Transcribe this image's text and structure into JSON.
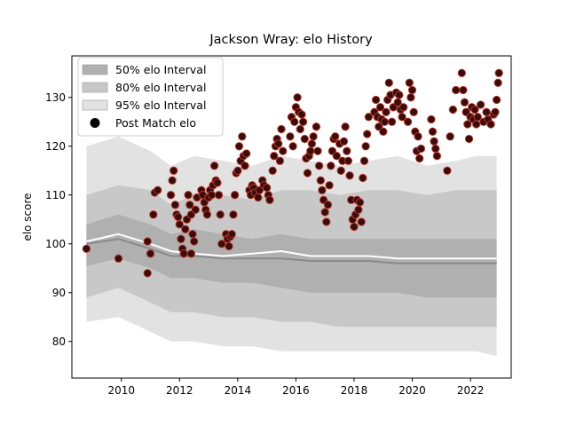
{
  "chart_data": {
    "type": "scatter",
    "title": "Jackson Wray: elo History",
    "xlabel": "",
    "ylabel": "elo score",
    "xlim": [
      2008.3,
      2023.4
    ],
    "ylim": [
      72.5,
      138.5
    ],
    "x_ticks": [
      2010,
      2012,
      2014,
      2016,
      2018,
      2020,
      2022
    ],
    "y_ticks": [
      80,
      90,
      100,
      110,
      120,
      130
    ],
    "legend_placement": "upper-left",
    "legend": [
      {
        "label": "50% elo Interval",
        "kind": "band",
        "color": "#b0b0b0"
      },
      {
        "label": "80% elo Interval",
        "kind": "band",
        "color": "#c8c8c8"
      },
      {
        "label": "95% elo Interval",
        "kind": "band",
        "color": "#e2e2e2"
      },
      {
        "label": "Post Match elo",
        "kind": "marker",
        "color": "#000000"
      }
    ],
    "colors": {
      "band50": "#b0b0b0",
      "band80": "#c8c8c8",
      "band95": "#e2e2e2",
      "median_line": "#8a8a8a",
      "mean_line": "#ffffff",
      "point_fill": "#3a0d0d",
      "point_edge": "#c0392b"
    },
    "bands": {
      "x": [
        2008.8,
        2009.9,
        2011.0,
        2011.7,
        2012.5,
        2013.5,
        2014.5,
        2015.5,
        2016.5,
        2017.5,
        2018.5,
        2019.5,
        2020.5,
        2021.5,
        2022.2,
        2022.9
      ],
      "upper95": [
        120.0,
        122.0,
        119.0,
        116.0,
        118.0,
        117.0,
        116.0,
        118.0,
        117.0,
        116.0,
        117.0,
        118.0,
        116.0,
        117.0,
        118.0,
        118.0
      ],
      "upper80": [
        110.0,
        112.0,
        111.0,
        108.0,
        110.0,
        110.0,
        109.0,
        111.0,
        111.0,
        110.0,
        111.0,
        111.0,
        110.0,
        111.0,
        111.0,
        111.0
      ],
      "upper50": [
        104.0,
        106.0,
        104.0,
        102.0,
        103.0,
        102.0,
        101.0,
        102.0,
        101.0,
        101.0,
        101.0,
        101.0,
        101.0,
        101.0,
        101.0,
        101.0
      ],
      "lower50": [
        95.5,
        97.0,
        95.0,
        93.0,
        93.0,
        92.0,
        92.0,
        91.0,
        90.0,
        90.0,
        90.0,
        90.0,
        89.0,
        89.0,
        89.0,
        89.0
      ],
      "lower80": [
        89.0,
        91.0,
        88.0,
        86.0,
        86.0,
        85.0,
        85.0,
        84.0,
        84.0,
        83.0,
        83.0,
        83.0,
        83.0,
        83.0,
        83.0,
        83.0
      ],
      "lower95": [
        84.0,
        85.0,
        82.0,
        80.0,
        80.0,
        79.0,
        79.0,
        78.0,
        78.0,
        78.0,
        78.0,
        78.0,
        78.0,
        78.0,
        78.0,
        77.0
      ],
      "median": [
        100.0,
        101.0,
        99.0,
        97.5,
        97.5,
        97.0,
        97.0,
        97.0,
        96.5,
        96.5,
        96.5,
        96.0,
        96.0,
        96.0,
        96.0,
        96.0
      ],
      "mean": [
        100.5,
        102.0,
        100.0,
        98.5,
        98.0,
        97.5,
        98.0,
        98.5,
        97.5,
        97.5,
        97.5,
        97.0,
        97.0,
        97.0,
        97.0,
        97.0
      ]
    },
    "points": [
      [
        2008.8,
        99.0
      ],
      [
        2009.9,
        97.0
      ],
      [
        2010.9,
        100.5
      ],
      [
        2010.9,
        94.0
      ],
      [
        2011.0,
        98.0
      ],
      [
        2011.1,
        106.0
      ],
      [
        2011.15,
        110.5
      ],
      [
        2011.25,
        111.0
      ],
      [
        2011.7,
        110.0
      ],
      [
        2011.75,
        113.0
      ],
      [
        2011.8,
        115.0
      ],
      [
        2011.85,
        108.0
      ],
      [
        2011.9,
        106.0
      ],
      [
        2011.95,
        105.5
      ],
      [
        2012.0,
        104.0
      ],
      [
        2012.05,
        101.0
      ],
      [
        2012.1,
        99.0
      ],
      [
        2012.15,
        98.0
      ],
      [
        2012.2,
        103.0
      ],
      [
        2012.25,
        105.0
      ],
      [
        2012.3,
        110.0
      ],
      [
        2012.35,
        108.0
      ],
      [
        2012.4,
        106.0
      ],
      [
        2012.45,
        102.0
      ],
      [
        2012.5,
        100.5
      ],
      [
        2012.55,
        107.0
      ],
      [
        2012.6,
        109.5
      ],
      [
        2012.4,
        98.0
      ],
      [
        2012.75,
        111.0
      ],
      [
        2012.8,
        110.0
      ],
      [
        2012.85,
        108.5
      ],
      [
        2012.9,
        107.0
      ],
      [
        2012.95,
        106.0
      ],
      [
        2013.0,
        109.5
      ],
      [
        2013.05,
        111.0
      ],
      [
        2013.1,
        110.0
      ],
      [
        2013.15,
        112.0
      ],
      [
        2013.2,
        116.0
      ],
      [
        2013.25,
        113.0
      ],
      [
        2013.3,
        112.5
      ],
      [
        2013.35,
        110.0
      ],
      [
        2013.4,
        106.0
      ],
      [
        2013.45,
        100.0
      ],
      [
        2013.6,
        102.0
      ],
      [
        2013.65,
        101.0
      ],
      [
        2013.7,
        99.5
      ],
      [
        2013.75,
        101.5
      ],
      [
        2013.8,
        102.0
      ],
      [
        2013.85,
        106.0
      ],
      [
        2013.9,
        110.0
      ],
      [
        2013.95,
        114.5
      ],
      [
        2014.0,
        115.0
      ],
      [
        2014.05,
        120.0
      ],
      [
        2014.1,
        117.0
      ],
      [
        2014.15,
        122.0
      ],
      [
        2014.2,
        118.0
      ],
      [
        2014.25,
        116.0
      ],
      [
        2014.3,
        118.5
      ],
      [
        2014.4,
        111.0
      ],
      [
        2014.45,
        110.0
      ],
      [
        2014.5,
        112.0
      ],
      [
        2014.55,
        111.5
      ],
      [
        2014.6,
        110.5
      ],
      [
        2014.7,
        109.5
      ],
      [
        2014.75,
        111.0
      ],
      [
        2014.85,
        113.0
      ],
      [
        2014.9,
        112.0
      ],
      [
        2015.0,
        111.5
      ],
      [
        2015.05,
        110.0
      ],
      [
        2015.1,
        109.0
      ],
      [
        2015.2,
        115.0
      ],
      [
        2015.25,
        118.0
      ],
      [
        2015.3,
        120.0
      ],
      [
        2015.35,
        121.5
      ],
      [
        2015.4,
        120.5
      ],
      [
        2015.45,
        117.0
      ],
      [
        2015.5,
        123.5
      ],
      [
        2015.55,
        119.0
      ],
      [
        2015.8,
        122.0
      ],
      [
        2015.85,
        126.0
      ],
      [
        2015.9,
        120.0
      ],
      [
        2015.95,
        125.0
      ],
      [
        2016.0,
        128.0
      ],
      [
        2016.05,
        130.0
      ],
      [
        2016.1,
        127.0
      ],
      [
        2016.15,
        123.5
      ],
      [
        2016.2,
        126.5
      ],
      [
        2016.25,
        125.0
      ],
      [
        2016.3,
        121.5
      ],
      [
        2016.35,
        117.5
      ],
      [
        2016.4,
        114.5
      ],
      [
        2016.45,
        118.0
      ],
      [
        2016.5,
        119.0
      ],
      [
        2016.55,
        120.5
      ],
      [
        2016.6,
        122.0
      ],
      [
        2016.7,
        124.0
      ],
      [
        2016.75,
        119.0
      ],
      [
        2016.8,
        116.0
      ],
      [
        2016.85,
        113.0
      ],
      [
        2016.9,
        111.0
      ],
      [
        2016.95,
        109.0
      ],
      [
        2017.0,
        106.5
      ],
      [
        2017.05,
        104.5
      ],
      [
        2017.1,
        108.0
      ],
      [
        2017.15,
        112.0
      ],
      [
        2017.2,
        116.0
      ],
      [
        2017.25,
        119.0
      ],
      [
        2017.3,
        121.5
      ],
      [
        2017.35,
        122.0
      ],
      [
        2017.4,
        118.0
      ],
      [
        2017.5,
        120.5
      ],
      [
        2017.55,
        115.0
      ],
      [
        2017.6,
        117.0
      ],
      [
        2017.65,
        121.0
      ],
      [
        2017.7,
        124.0
      ],
      [
        2017.75,
        119.0
      ],
      [
        2017.8,
        117.0
      ],
      [
        2017.85,
        114.0
      ],
      [
        2017.9,
        109.0
      ],
      [
        2017.95,
        105.0
      ],
      [
        2018.0,
        103.5
      ],
      [
        2018.05,
        106.0
      ],
      [
        2018.1,
        109.0
      ],
      [
        2018.15,
        107.0
      ],
      [
        2018.2,
        108.5
      ],
      [
        2018.25,
        104.5
      ],
      [
        2018.3,
        113.5
      ],
      [
        2018.35,
        117.0
      ],
      [
        2018.4,
        120.0
      ],
      [
        2018.45,
        122.5
      ],
      [
        2018.5,
        126.0
      ],
      [
        2018.7,
        127.0
      ],
      [
        2018.75,
        129.5
      ],
      [
        2018.8,
        126.0
      ],
      [
        2018.85,
        124.0
      ],
      [
        2018.9,
        128.0
      ],
      [
        2018.95,
        125.5
      ],
      [
        2019.0,
        123.0
      ],
      [
        2019.05,
        125.0
      ],
      [
        2019.1,
        127.0
      ],
      [
        2019.15,
        129.5
      ],
      [
        2019.2,
        133.0
      ],
      [
        2019.25,
        130.5
      ],
      [
        2019.3,
        125.0
      ],
      [
        2019.35,
        128.0
      ],
      [
        2019.45,
        131.0
      ],
      [
        2019.5,
        129.0
      ],
      [
        2019.55,
        130.5
      ],
      [
        2019.6,
        127.5
      ],
      [
        2019.65,
        126.0
      ],
      [
        2019.7,
        128.0
      ],
      [
        2019.85,
        125.0
      ],
      [
        2019.9,
        133.0
      ],
      [
        2019.95,
        130.0
      ],
      [
        2020.0,
        131.5
      ],
      [
        2020.05,
        127.0
      ],
      [
        2020.1,
        123.0
      ],
      [
        2020.15,
        119.0
      ],
      [
        2020.2,
        122.0
      ],
      [
        2020.25,
        117.5
      ],
      [
        2020.3,
        119.5
      ],
      [
        2020.65,
        125.5
      ],
      [
        2020.7,
        123.0
      ],
      [
        2020.75,
        121.0
      ],
      [
        2020.8,
        119.5
      ],
      [
        2020.85,
        118.0
      ],
      [
        2021.2,
        115.0
      ],
      [
        2021.3,
        122.0
      ],
      [
        2021.4,
        127.5
      ],
      [
        2021.5,
        131.5
      ],
      [
        2021.7,
        135.0
      ],
      [
        2021.75,
        131.5
      ],
      [
        2021.8,
        129.0
      ],
      [
        2021.85,
        127.0
      ],
      [
        2021.9,
        124.5
      ],
      [
        2021.95,
        121.5
      ],
      [
        2022.0,
        126.0
      ],
      [
        2022.05,
        128.0
      ],
      [
        2022.1,
        125.5
      ],
      [
        2022.15,
        127.5
      ],
      [
        2022.2,
        124.5
      ],
      [
        2022.25,
        126.0
      ],
      [
        2022.35,
        128.5
      ],
      [
        2022.45,
        125.0
      ],
      [
        2022.55,
        127.0
      ],
      [
        2022.6,
        125.5
      ],
      [
        2022.7,
        124.5
      ],
      [
        2022.8,
        126.5
      ],
      [
        2022.85,
        127.0
      ],
      [
        2022.9,
        129.5
      ],
      [
        2022.95,
        133.0
      ],
      [
        2022.98,
        135.0
      ]
    ]
  }
}
